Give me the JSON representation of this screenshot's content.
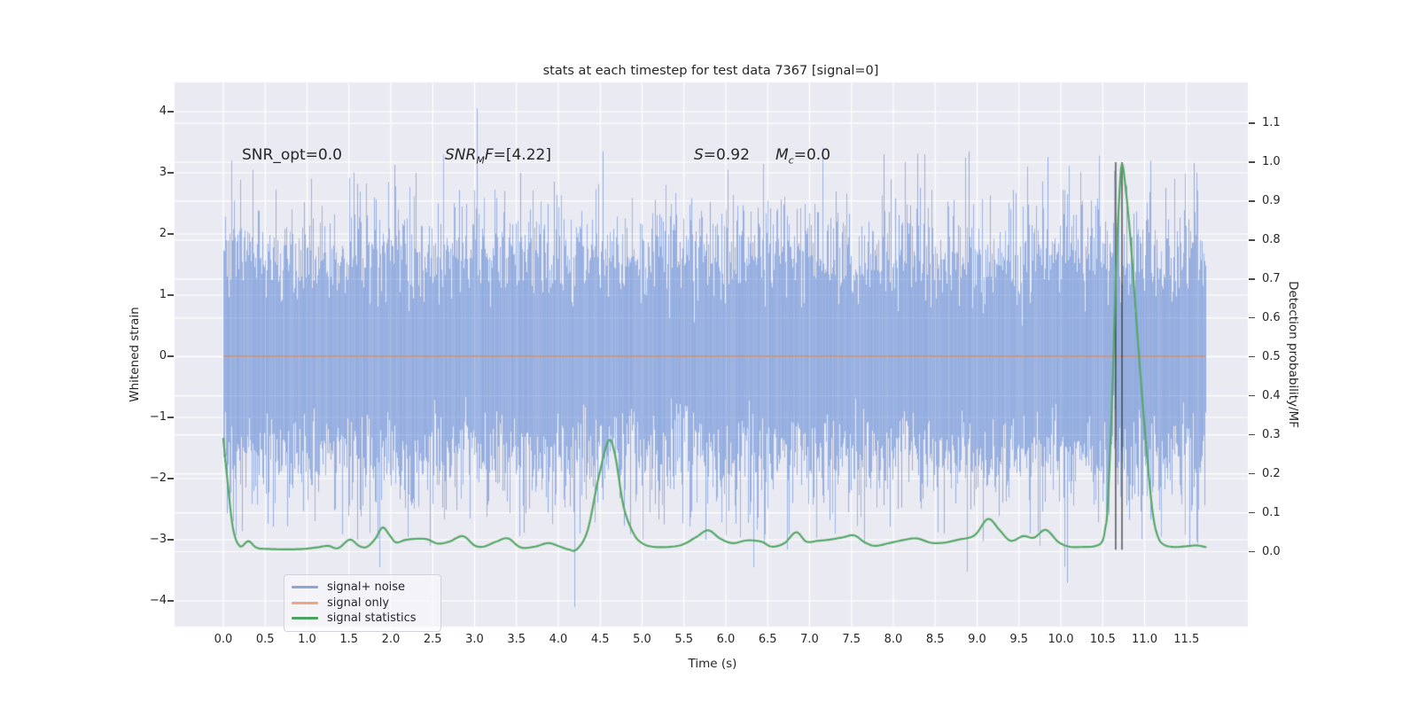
{
  "title": "stats at each timestep for test data 7367 [signal=0]",
  "annotations": {
    "snr_opt": {
      "text": "SNR_opt=0.0"
    },
    "snr_mf": {
      "pre": "SNR",
      "sub": "M",
      "mid": "F",
      "post": "=[4.22]"
    },
    "s": {
      "pre": "S",
      "post": "=0.92"
    },
    "mc": {
      "pre": "M",
      "sub": "c",
      "post": "=0.0"
    }
  },
  "x_axis": {
    "label": "Time (s)",
    "ticks": [
      "0.0",
      "0.5",
      "1.0",
      "1.5",
      "2.0",
      "2.5",
      "3.0",
      "3.5",
      "4.0",
      "4.5",
      "5.0",
      "5.5",
      "6.0",
      "6.5",
      "7.0",
      "7.5",
      "8.0",
      "8.5",
      "9.0",
      "9.5",
      "10.0",
      "10.5",
      "11.0",
      "11.5"
    ]
  },
  "left_axis": {
    "label": "Whitened strain",
    "ticks": [
      "4",
      "3",
      "2",
      "1",
      "0",
      "−1",
      "−2",
      "−3",
      "−4"
    ]
  },
  "right_axis": {
    "label": "Detection probability/MF",
    "ticks": [
      "1.1",
      "1.0",
      "0.9",
      "0.8",
      "0.7",
      "0.6",
      "0.5",
      "0.4",
      "0.3",
      "0.2",
      "0.1",
      "0.0"
    ]
  },
  "legend": {
    "items": [
      {
        "label": "signal+ noise",
        "color": "#8ea6d6"
      },
      {
        "label": "signal only",
        "color": "#eda583"
      },
      {
        "label": "signal statistics",
        "color": "#4aa45f"
      }
    ]
  },
  "colors": {
    "figure_bg": "#ffffff",
    "axes_bg": "#eaeaf2",
    "grid": "#ffffff",
    "noise_stroke": "72,120,208",
    "signal_only": "rgba(221,132,82,0.85)",
    "signal_statistics": "#55a868",
    "event_marker": "rgba(45,45,45,0.85)",
    "text": "#262626"
  },
  "chart_data": {
    "type": "line",
    "title": "stats at each timestep for test data 7367 [signal=0]",
    "xlabel": "Time (s)",
    "ylabel_left": "Whitened strain",
    "ylabel_right": "Detection probability/MF",
    "xlim": [
      -0.58,
      12.23
    ],
    "ylim_left": [
      -4.42,
      4.48
    ],
    "ylim_right": [
      -0.19,
      1.2
    ],
    "x_tick_step": 0.5,
    "grid": true,
    "legend_position": "lower left",
    "series": [
      {
        "name": "signal+ noise",
        "axis": "left",
        "type": "noise",
        "mean": 0.0,
        "sigma": 0.93,
        "duration_s": 11.73,
        "notable_extremes": [
          [
            0.09,
            3.2
          ],
          [
            0.35,
            3.05
          ],
          [
            1.05,
            2.9
          ],
          [
            1.6,
            -3.0
          ],
          [
            2.2,
            -2.95
          ],
          [
            2.62,
            3.3
          ],
          [
            3.03,
            4.05
          ],
          [
            3.55,
            3.0
          ],
          [
            4.19,
            -4.1
          ],
          [
            4.53,
            3.35
          ],
          [
            5.0,
            -3.0
          ],
          [
            6.02,
            3.05
          ],
          [
            6.33,
            -3.45
          ],
          [
            7.3,
            -2.9
          ],
          [
            7.88,
            3.3
          ],
          [
            8.6,
            -2.9
          ],
          [
            8.86,
            3.25
          ],
          [
            9.6,
            3.1
          ],
          [
            9.75,
            -3.1
          ],
          [
            10.45,
            3.28
          ],
          [
            11.07,
            3.2
          ],
          [
            11.2,
            -2.95
          ],
          [
            11.35,
            2.9
          ]
        ]
      },
      {
        "name": "signal only",
        "axis": "left",
        "type": "constant",
        "value": 0.0,
        "t_range": [
          0,
          11.73
        ]
      },
      {
        "name": "signal statistics",
        "axis": "right",
        "type": "curve",
        "points": [
          [
            0.0,
            0.29
          ],
          [
            0.06,
            0.16
          ],
          [
            0.12,
            0.055
          ],
          [
            0.2,
            0.014
          ],
          [
            0.3,
            0.027
          ],
          [
            0.4,
            0.01
          ],
          [
            0.55,
            0.007
          ],
          [
            0.75,
            0.006
          ],
          [
            0.95,
            0.007
          ],
          [
            1.12,
            0.011
          ],
          [
            1.25,
            0.015
          ],
          [
            1.37,
            0.009
          ],
          [
            1.51,
            0.031
          ],
          [
            1.62,
            0.015
          ],
          [
            1.71,
            0.012
          ],
          [
            1.81,
            0.032
          ],
          [
            1.9,
            0.062
          ],
          [
            1.98,
            0.044
          ],
          [
            2.06,
            0.024
          ],
          [
            2.17,
            0.03
          ],
          [
            2.3,
            0.033
          ],
          [
            2.43,
            0.032
          ],
          [
            2.56,
            0.021
          ],
          [
            2.7,
            0.026
          ],
          [
            2.86,
            0.04
          ],
          [
            3.0,
            0.016
          ],
          [
            3.11,
            0.013
          ],
          [
            3.26,
            0.026
          ],
          [
            3.4,
            0.034
          ],
          [
            3.55,
            0.011
          ],
          [
            3.72,
            0.013
          ],
          [
            3.88,
            0.022
          ],
          [
            4.02,
            0.013
          ],
          [
            4.12,
            0.006
          ],
          [
            4.22,
            0.006
          ],
          [
            4.35,
            0.055
          ],
          [
            4.48,
            0.19
          ],
          [
            4.6,
            0.285
          ],
          [
            4.68,
            0.245
          ],
          [
            4.78,
            0.115
          ],
          [
            4.9,
            0.046
          ],
          [
            5.0,
            0.022
          ],
          [
            5.12,
            0.013
          ],
          [
            5.3,
            0.012
          ],
          [
            5.48,
            0.018
          ],
          [
            5.65,
            0.038
          ],
          [
            5.79,
            0.055
          ],
          [
            5.93,
            0.034
          ],
          [
            6.08,
            0.022
          ],
          [
            6.25,
            0.029
          ],
          [
            6.42,
            0.026
          ],
          [
            6.55,
            0.013
          ],
          [
            6.7,
            0.022
          ],
          [
            6.84,
            0.05
          ],
          [
            6.96,
            0.026
          ],
          [
            7.1,
            0.028
          ],
          [
            7.24,
            0.031
          ],
          [
            7.4,
            0.037
          ],
          [
            7.53,
            0.042
          ],
          [
            7.66,
            0.024
          ],
          [
            7.78,
            0.015
          ],
          [
            7.95,
            0.022
          ],
          [
            8.12,
            0.03
          ],
          [
            8.28,
            0.034
          ],
          [
            8.45,
            0.023
          ],
          [
            8.6,
            0.023
          ],
          [
            8.78,
            0.031
          ],
          [
            8.97,
            0.042
          ],
          [
            9.13,
            0.084
          ],
          [
            9.27,
            0.055
          ],
          [
            9.4,
            0.028
          ],
          [
            9.55,
            0.04
          ],
          [
            9.68,
            0.036
          ],
          [
            9.82,
            0.056
          ],
          [
            9.97,
            0.025
          ],
          [
            10.1,
            0.013
          ],
          [
            10.25,
            0.012
          ],
          [
            10.4,
            0.014
          ],
          [
            10.49,
            0.025
          ],
          [
            10.53,
            0.06
          ],
          [
            10.56,
            0.12
          ],
          [
            10.61,
            0.38
          ],
          [
            10.655,
            0.7
          ],
          [
            10.695,
            0.9
          ],
          [
            10.73,
            0.995
          ],
          [
            10.78,
            0.92
          ],
          [
            10.84,
            0.78
          ],
          [
            10.9,
            0.6
          ],
          [
            10.97,
            0.4
          ],
          [
            11.04,
            0.22
          ],
          [
            11.1,
            0.095
          ],
          [
            11.16,
            0.038
          ],
          [
            11.23,
            0.018
          ],
          [
            11.35,
            0.012
          ],
          [
            11.5,
            0.014
          ],
          [
            11.62,
            0.016
          ],
          [
            11.73,
            0.012
          ]
        ]
      }
    ],
    "event_markers": {
      "t": [
        10.655,
        10.73
      ],
      "p_range": [
        0.005,
        1.0
      ]
    }
  }
}
